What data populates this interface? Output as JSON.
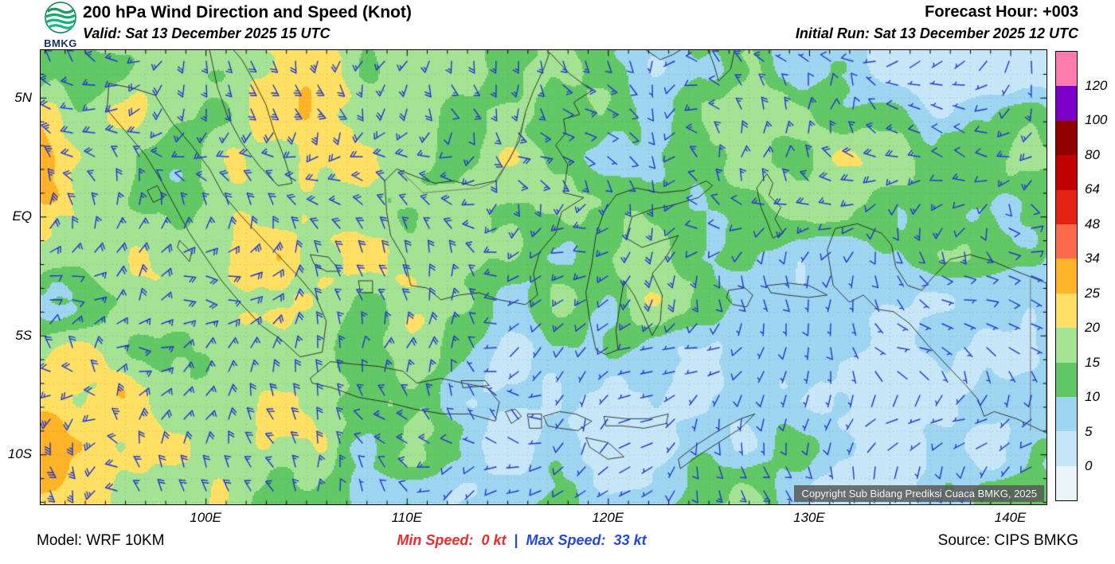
{
  "header": {
    "title": "200 hPa Wind Direction and Speed (Knot)",
    "valid_label": "Valid: Sat 13 December 2025 15 UTC",
    "forecast_hour_label": "Forecast Hour: +003",
    "initial_run_label": "Initial Run: Sat 13 December 2025 12 UTC",
    "logo_text": "BMKG"
  },
  "map": {
    "lat_ticks": [
      {
        "label": "5N",
        "lat": 5
      },
      {
        "label": "EQ",
        "lat": 0
      },
      {
        "label": "5S",
        "lat": -5
      },
      {
        "label": "10S",
        "lat": -10
      }
    ],
    "lon_ticks": [
      {
        "label": "100E",
        "lon": 100
      },
      {
        "label": "110E",
        "lon": 110
      },
      {
        "label": "120E",
        "lon": 120
      },
      {
        "label": "130E",
        "lon": 130
      },
      {
        "label": "140E",
        "lon": 140
      }
    ],
    "copyright": "Copyright Sub Bidang Prediksi Cuaca BMKG, 2025",
    "barb_color": "#2036CE"
  },
  "colorbar": {
    "tick_labels": [
      "120",
      "100",
      "80",
      "64",
      "48",
      "34",
      "25",
      "20",
      "15",
      "10",
      "5",
      "0"
    ],
    "segment_colors_top_to_bottom": [
      "#FF7BAC",
      "#7A00C8",
      "#8F0000",
      "#C00000",
      "#E32213",
      "#FB6A4A",
      "#FFB327",
      "#FFE063",
      "#A5E394",
      "#62C865",
      "#9ED5F0",
      "#C7E6F7",
      "#E9F4FB"
    ]
  },
  "footer": {
    "model_label": "Model: WRF 10KM",
    "min_speed_label": "Min Speed:",
    "min_speed_value": "0 kt",
    "separator": "|",
    "max_speed_label": "Max Speed:",
    "max_speed_value": "33 kt",
    "source_label": "Source: CIPS BMKG"
  },
  "chart_data": {
    "type": "heatmap",
    "title": "200 hPa Wind Direction and Speed (Knot)",
    "units": "knot",
    "speed_scale_bounds_kt": [
      0,
      5,
      10,
      15,
      20,
      25,
      34,
      48,
      64,
      80,
      100,
      120
    ],
    "min_speed_kt": 0,
    "max_speed_kt": 33,
    "lat_tick_labels": [
      "5N",
      "EQ",
      "5S",
      "10S"
    ],
    "lon_tick_labels": [
      "100E",
      "110E",
      "120E",
      "130E",
      "140E"
    ],
    "legend_position": "right"
  }
}
